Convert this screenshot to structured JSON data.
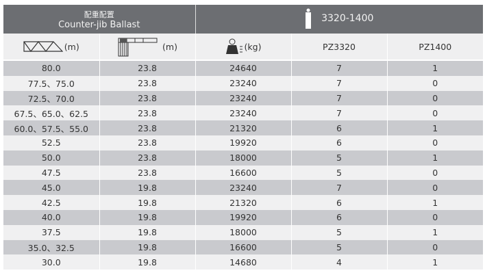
{
  "header": {
    "ballast_cn": "配重配置",
    "ballast_en": "Counter-jib Ballast",
    "model": "3320-1400"
  },
  "columns": [
    {
      "icon": "jib-truss-icon",
      "unit": "(m)"
    },
    {
      "icon": "counter-jib-icon",
      "unit": "(m)"
    },
    {
      "icon": "counterweight-icon",
      "unit": "(kg)"
    },
    {
      "label": "PZ3320"
    },
    {
      "label": "PZ1400"
    }
  ],
  "rows": [
    [
      "80.0",
      "23.8",
      "24640",
      "7",
      "1"
    ],
    [
      "77.5、75.0",
      "23.8",
      "23240",
      "7",
      "0"
    ],
    [
      "72.5、70.0",
      "23.8",
      "23240",
      "7",
      "0"
    ],
    [
      "67.5、65.0、62.5",
      "23.8",
      "23240",
      "7",
      "0"
    ],
    [
      "60.0、57.5、55.0",
      "23.8",
      "21320",
      "6",
      "1"
    ],
    [
      "52.5",
      "23.8",
      "19920",
      "6",
      "0"
    ],
    [
      "50.0",
      "23.8",
      "18000",
      "5",
      "1"
    ],
    [
      "47.5",
      "23.8",
      "16600",
      "5",
      "0"
    ],
    [
      "45.0",
      "19.8",
      "23240",
      "7",
      "0"
    ],
    [
      "42.5",
      "19.8",
      "21320",
      "6",
      "1"
    ],
    [
      "40.0",
      "19.8",
      "19920",
      "6",
      "0"
    ],
    [
      "37.5",
      "19.8",
      "18000",
      "5",
      "1"
    ],
    [
      "35.0、32.5",
      "19.8",
      "16600",
      "5",
      "0"
    ],
    [
      "30.0",
      "19.8",
      "14680",
      "4",
      "1"
    ]
  ],
  "colors": {
    "header_bg": "#6c6e72",
    "row_dark": "#c9cace",
    "row_light": "#f0f0f1"
  }
}
